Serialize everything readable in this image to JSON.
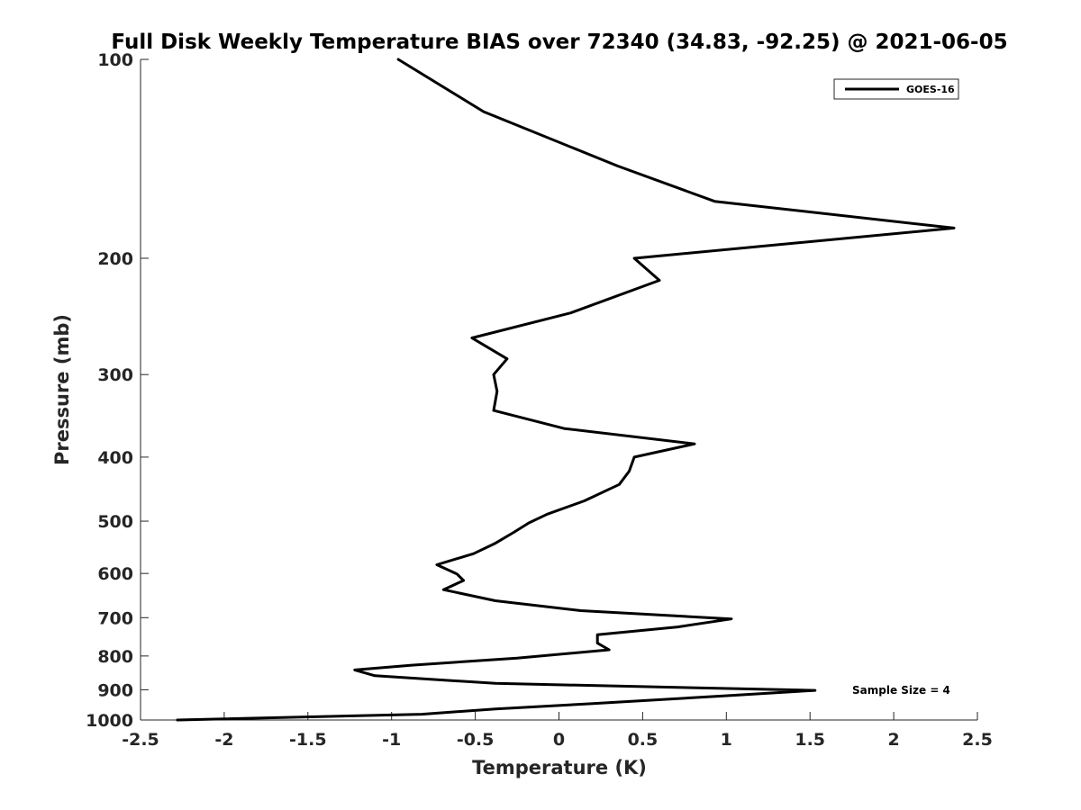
{
  "chart_data": {
    "type": "line",
    "title": "Full Disk Weekly Temperature BIAS over 72340 (34.83, -92.25) @ 2021-06-05",
    "xlabel": "Temperature (K)",
    "ylabel": "Pressure (mb)",
    "xlim": [
      -2.5,
      2.5
    ],
    "ylim": [
      100,
      1000
    ],
    "y_scale": "log",
    "y_reversed": true,
    "grid": false,
    "x_ticks": [
      -2.5,
      -2,
      -1.5,
      -1,
      -0.5,
      0,
      0.5,
      1,
      1.5,
      2,
      2.5
    ],
    "x_tick_labels": [
      "-2.5",
      "-2",
      "-1.5",
      "-1",
      "-0.5",
      "0",
      "0.5",
      "1",
      "1.5",
      "2",
      "2.5"
    ],
    "y_ticks": [
      100,
      200,
      300,
      400,
      500,
      600,
      700,
      800,
      900,
      1000
    ],
    "y_tick_labels": [
      "100",
      "200",
      "300",
      "400",
      "500",
      "600",
      "700",
      "800",
      "900",
      "1000"
    ],
    "legend_position": "top-right",
    "series": [
      {
        "name": "GOES-16",
        "color": "#000000",
        "points": [
          {
            "x": -0.96,
            "y": 100
          },
          {
            "x": -0.45,
            "y": 120
          },
          {
            "x": 0.35,
            "y": 145
          },
          {
            "x": 0.93,
            "y": 164
          },
          {
            "x": 2.36,
            "y": 180
          },
          {
            "x": 0.45,
            "y": 200
          },
          {
            "x": 0.6,
            "y": 216
          },
          {
            "x": 0.07,
            "y": 242
          },
          {
            "x": -0.52,
            "y": 264
          },
          {
            "x": -0.31,
            "y": 284
          },
          {
            "x": -0.39,
            "y": 300
          },
          {
            "x": -0.37,
            "y": 318
          },
          {
            "x": -0.39,
            "y": 340
          },
          {
            "x": 0.03,
            "y": 362
          },
          {
            "x": 0.81,
            "y": 382
          },
          {
            "x": 0.45,
            "y": 400
          },
          {
            "x": 0.42,
            "y": 420
          },
          {
            "x": 0.36,
            "y": 440
          },
          {
            "x": 0.15,
            "y": 466
          },
          {
            "x": -0.07,
            "y": 488
          },
          {
            "x": -0.18,
            "y": 503
          },
          {
            "x": -0.27,
            "y": 520
          },
          {
            "x": -0.38,
            "y": 540
          },
          {
            "x": -0.51,
            "y": 560
          },
          {
            "x": -0.73,
            "y": 582
          },
          {
            "x": -0.61,
            "y": 601
          },
          {
            "x": -0.57,
            "y": 615
          },
          {
            "x": -0.69,
            "y": 635
          },
          {
            "x": -0.38,
            "y": 660
          },
          {
            "x": 0.13,
            "y": 683
          },
          {
            "x": 1.03,
            "y": 703
          },
          {
            "x": 0.71,
            "y": 723
          },
          {
            "x": 0.23,
            "y": 743
          },
          {
            "x": 0.23,
            "y": 765
          },
          {
            "x": 0.3,
            "y": 783
          },
          {
            "x": -0.25,
            "y": 806
          },
          {
            "x": -0.88,
            "y": 826
          },
          {
            "x": -1.22,
            "y": 840
          },
          {
            "x": -1.1,
            "y": 857
          },
          {
            "x": -0.38,
            "y": 880
          },
          {
            "x": 1.53,
            "y": 902
          },
          {
            "x": 0.97,
            "y": 920
          },
          {
            "x": 0.18,
            "y": 945
          },
          {
            "x": -0.38,
            "y": 962
          },
          {
            "x": -0.82,
            "y": 980
          },
          {
            "x": -2.28,
            "y": 1000
          }
        ]
      }
    ],
    "annotations": [
      {
        "text": "Sample Size = 4",
        "position": "bottom-right"
      }
    ]
  }
}
